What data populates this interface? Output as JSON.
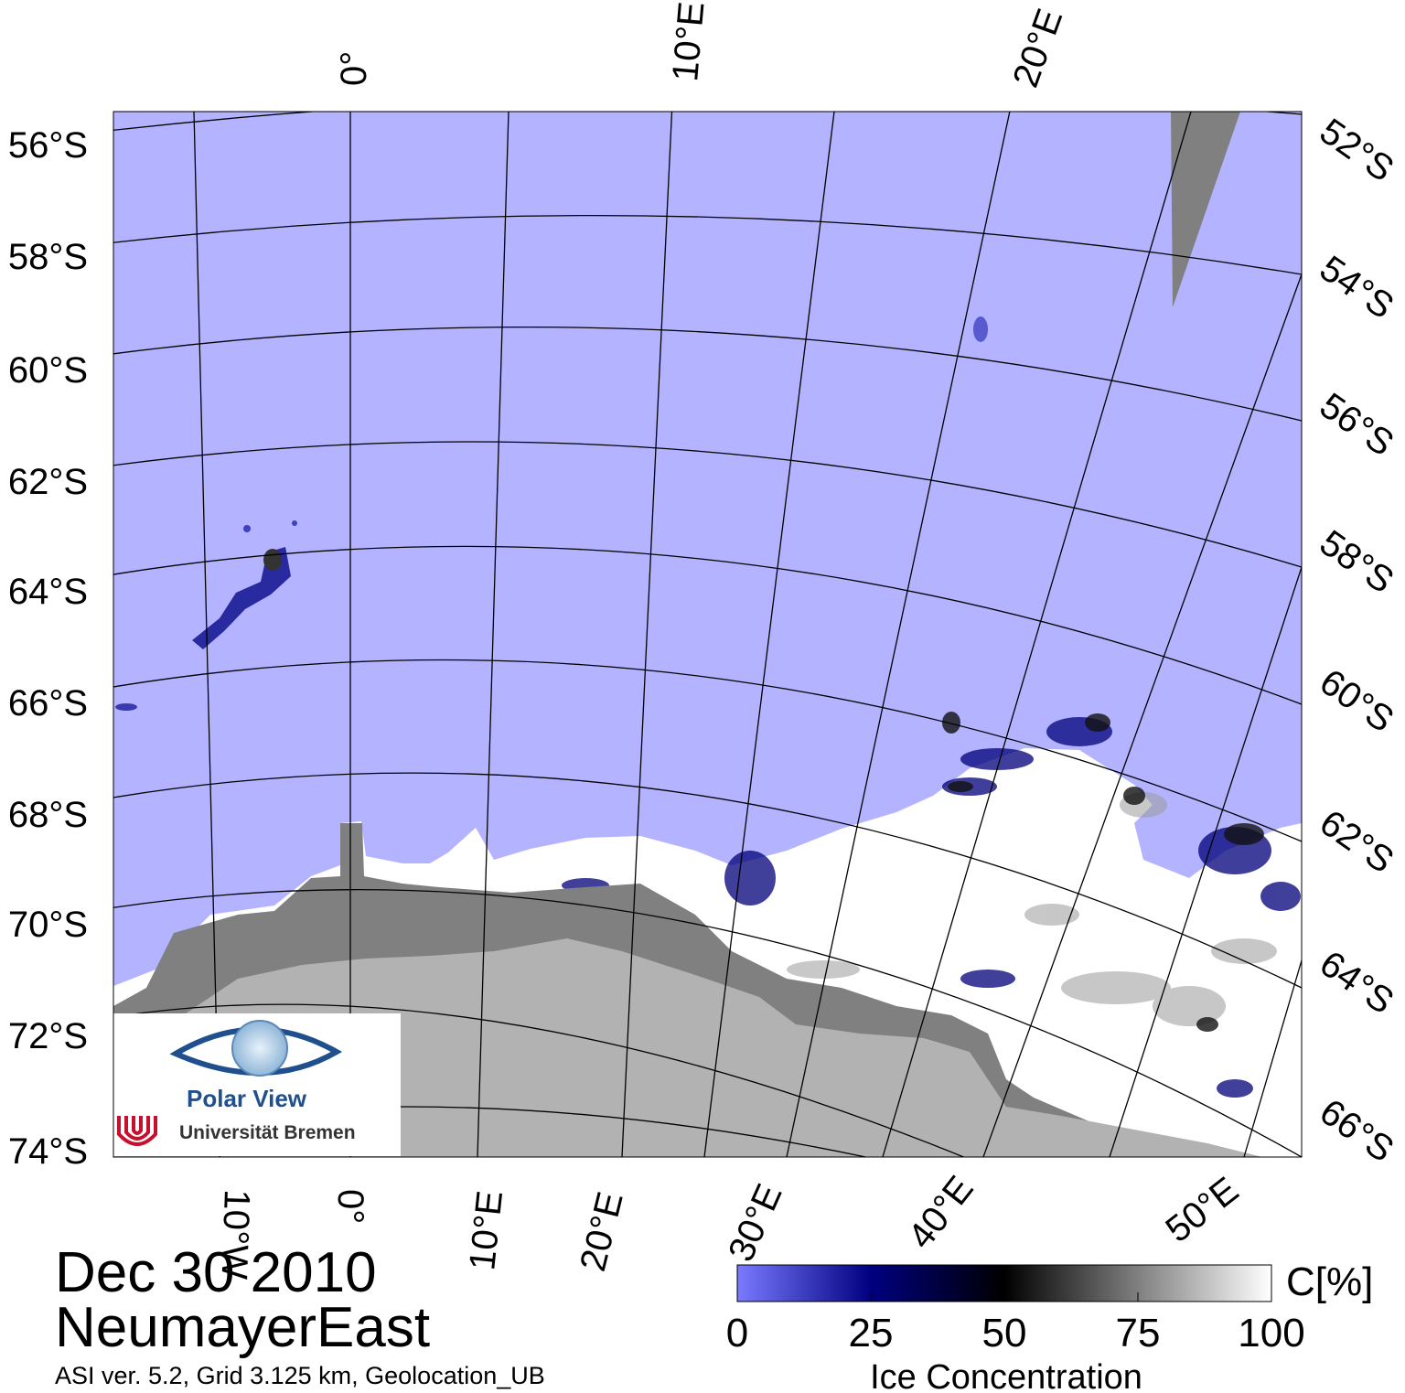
{
  "map": {
    "date": "Dec 30 2010",
    "region": "NeumayerEast",
    "footnote": "ASI ver. 5.2,  Grid 3.125 km, Geolocation_UB",
    "colors": {
      "open_water": "#b3b3ff",
      "land": "#b2b2b2",
      "ice_shelf": "#808080",
      "ice_high": "#ffffff",
      "no_data": "#808080",
      "graticule": "#000000"
    },
    "lat_labels_left": [
      "56°S",
      "58°S",
      "60°S",
      "62°S",
      "64°S",
      "66°S",
      "68°S",
      "70°S",
      "72°S",
      "74°S"
    ],
    "lat_labels_right": [
      "52°S",
      "54°S",
      "56°S",
      "58°S",
      "60°S",
      "62°S",
      "64°S",
      "66°S"
    ],
    "lon_labels_top": [
      "0°",
      "10°E",
      "20°E"
    ],
    "lon_labels_bottom": [
      "10°W",
      "0°",
      "10°E",
      "20°E",
      "30°E",
      "40°E",
      "50°E"
    ]
  },
  "logo": {
    "line1": "Polar View",
    "line2": "Universität Bremen"
  },
  "colorbar": {
    "title": "Ice Concentration",
    "unit": "C[%]",
    "ticks": [
      "0",
      "25",
      "50",
      "75",
      "100"
    ],
    "stops": [
      "#7a7aff",
      "#000080",
      "#000000",
      "#ffffff"
    ]
  }
}
